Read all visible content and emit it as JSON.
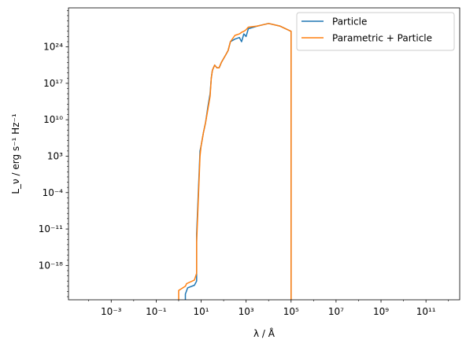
{
  "chart_data": {
    "type": "line",
    "title": "",
    "xlabel": "λ / Å",
    "ylabel": "L_ν / erg s⁻¹ Hz⁻¹",
    "xscale": "log",
    "yscale": "log",
    "xlim_log10": [
      -4.9,
      12.5
    ],
    "ylim_log10": [
      -24.6,
      31.5
    ],
    "grid": false,
    "legend_position": "top-right",
    "x_ticks": [
      {
        "exp": -3,
        "label": "10⁻³"
      },
      {
        "exp": -1,
        "label": "10⁻¹"
      },
      {
        "exp": 1,
        "label": "10¹"
      },
      {
        "exp": 3,
        "label": "10³"
      },
      {
        "exp": 5,
        "label": "10⁵"
      },
      {
        "exp": 7,
        "label": "10⁷"
      },
      {
        "exp": 9,
        "label": "10⁹"
      },
      {
        "exp": 11,
        "label": "10¹¹"
      }
    ],
    "y_ticks": [
      {
        "exp": -18,
        "label": "10⁻¹⁸"
      },
      {
        "exp": -11,
        "label": "10⁻¹¹"
      },
      {
        "exp": -4,
        "label": "10⁻⁴"
      },
      {
        "exp": 3,
        "label": "10³"
      },
      {
        "exp": 10,
        "label": "10¹⁰"
      },
      {
        "exp": 17,
        "label": "10¹⁷"
      },
      {
        "exp": 24,
        "label": "10²⁴"
      }
    ],
    "series": [
      {
        "name": "Particle",
        "color": "#1f77b4",
        "points_log10": [
          [
            0.3,
            -40
          ],
          [
            0.3,
            -23.5
          ],
          [
            0.4,
            -22.3
          ],
          [
            0.7,
            -21.8
          ],
          [
            0.8,
            -21.0
          ],
          [
            0.8,
            -12.0
          ],
          [
            0.95,
            4.0
          ],
          [
            1.0,
            5.0
          ],
          [
            1.1,
            7.5
          ],
          [
            1.2,
            9.5
          ],
          [
            1.3,
            12.5
          ],
          [
            1.4,
            15.0
          ],
          [
            1.45,
            18.0
          ],
          [
            1.5,
            19.5
          ],
          [
            1.6,
            20.5
          ],
          [
            1.7,
            20.0
          ],
          [
            1.8,
            20.0
          ],
          [
            1.9,
            21.0
          ],
          [
            2.1,
            22.5
          ],
          [
            2.2,
            23.3
          ],
          [
            2.3,
            25.0
          ],
          [
            2.5,
            25.5
          ],
          [
            2.7,
            25.8
          ],
          [
            2.8,
            25.0
          ],
          [
            2.9,
            26.5
          ],
          [
            3.0,
            26.0
          ],
          [
            3.1,
            27.5
          ],
          [
            3.5,
            28.0
          ],
          [
            3.7,
            28.2
          ],
          [
            4.0,
            28.5
          ],
          [
            4.5,
            28.0
          ],
          [
            5.0,
            27.0
          ],
          [
            5.0,
            -40
          ]
        ]
      },
      {
        "name": "Parametric + Particle",
        "color": "#ff7f0e",
        "points_log10": [
          [
            0.0,
            -40
          ],
          [
            0.0,
            -22.8
          ],
          [
            0.3,
            -22.0
          ],
          [
            0.35,
            -21.5
          ],
          [
            0.7,
            -20.8
          ],
          [
            0.8,
            -19.5
          ],
          [
            0.8,
            -13.5
          ],
          [
            0.95,
            3.0
          ],
          [
            1.0,
            5.0
          ],
          [
            1.1,
            7.5
          ],
          [
            1.2,
            9.5
          ],
          [
            1.3,
            12.0
          ],
          [
            1.4,
            14.5
          ],
          [
            1.45,
            18.0
          ],
          [
            1.5,
            19.5
          ],
          [
            1.6,
            20.5
          ],
          [
            1.7,
            20.0
          ],
          [
            1.8,
            20.0
          ],
          [
            1.9,
            21.0
          ],
          [
            2.1,
            22.5
          ],
          [
            2.2,
            23.3
          ],
          [
            2.3,
            25.0
          ],
          [
            2.5,
            26.2
          ],
          [
            2.7,
            26.5
          ],
          [
            2.8,
            26.8
          ],
          [
            2.9,
            27.0
          ],
          [
            3.0,
            27.3
          ],
          [
            3.1,
            27.8
          ],
          [
            3.5,
            28.0
          ],
          [
            3.7,
            28.2
          ],
          [
            4.0,
            28.5
          ],
          [
            4.5,
            28.0
          ],
          [
            5.0,
            27.0
          ],
          [
            5.0,
            -40
          ]
        ]
      }
    ]
  }
}
